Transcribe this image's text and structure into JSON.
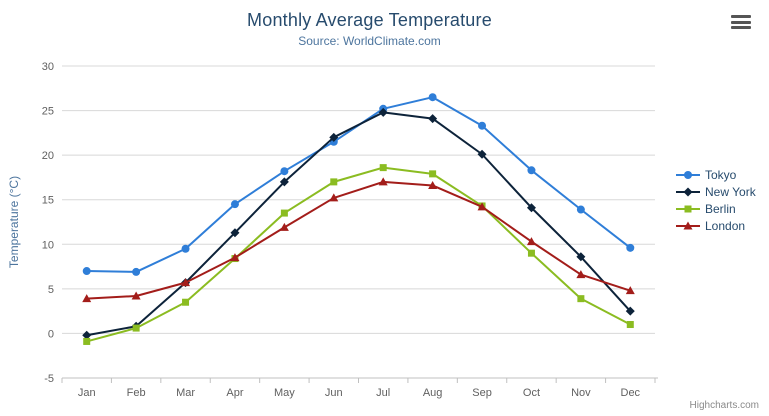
{
  "chart_data": {
    "type": "line",
    "title": "Monthly Average Temperature",
    "subtitle": "Source: WorldClimate.com",
    "categories": [
      "Jan",
      "Feb",
      "Mar",
      "Apr",
      "May",
      "Jun",
      "Jul",
      "Aug",
      "Sep",
      "Oct",
      "Nov",
      "Dec"
    ],
    "xlabel": "",
    "ylabel": "Temperature (°C)",
    "ylim": [
      -5,
      30
    ],
    "yticks": [
      -5,
      0,
      5,
      10,
      15,
      20,
      25,
      30
    ],
    "grid": true,
    "legend_position": "right",
    "series": [
      {
        "name": "Tokyo",
        "color": "#2f7ed8",
        "marker": "circle",
        "values": [
          7.0,
          6.9,
          9.5,
          14.5,
          18.2,
          21.5,
          25.2,
          26.5,
          23.3,
          18.3,
          13.9,
          9.6
        ]
      },
      {
        "name": "New York",
        "color": "#0d233a",
        "marker": "diamond",
        "values": [
          -0.2,
          0.8,
          5.7,
          11.3,
          17.0,
          22.0,
          24.8,
          24.1,
          20.1,
          14.1,
          8.6,
          2.5
        ]
      },
      {
        "name": "Berlin",
        "color": "#8bbc21",
        "marker": "square",
        "values": [
          -0.9,
          0.6,
          3.5,
          8.4,
          13.5,
          17.0,
          18.6,
          17.9,
          14.3,
          9.0,
          3.9,
          1.0
        ]
      },
      {
        "name": "London",
        "color": "#a31d1a",
        "marker": "triangle",
        "values": [
          3.9,
          4.2,
          5.7,
          8.5,
          11.9,
          15.2,
          17.0,
          16.6,
          14.2,
          10.3,
          6.6,
          4.8
        ]
      }
    ],
    "axis_label_color": "#606060",
    "axis_title_color": "#4d759e",
    "gridline_color": "#d8d8d8",
    "axis_line_color": "#c0c0c0"
  },
  "credits": {
    "label": "Highcharts.com"
  }
}
